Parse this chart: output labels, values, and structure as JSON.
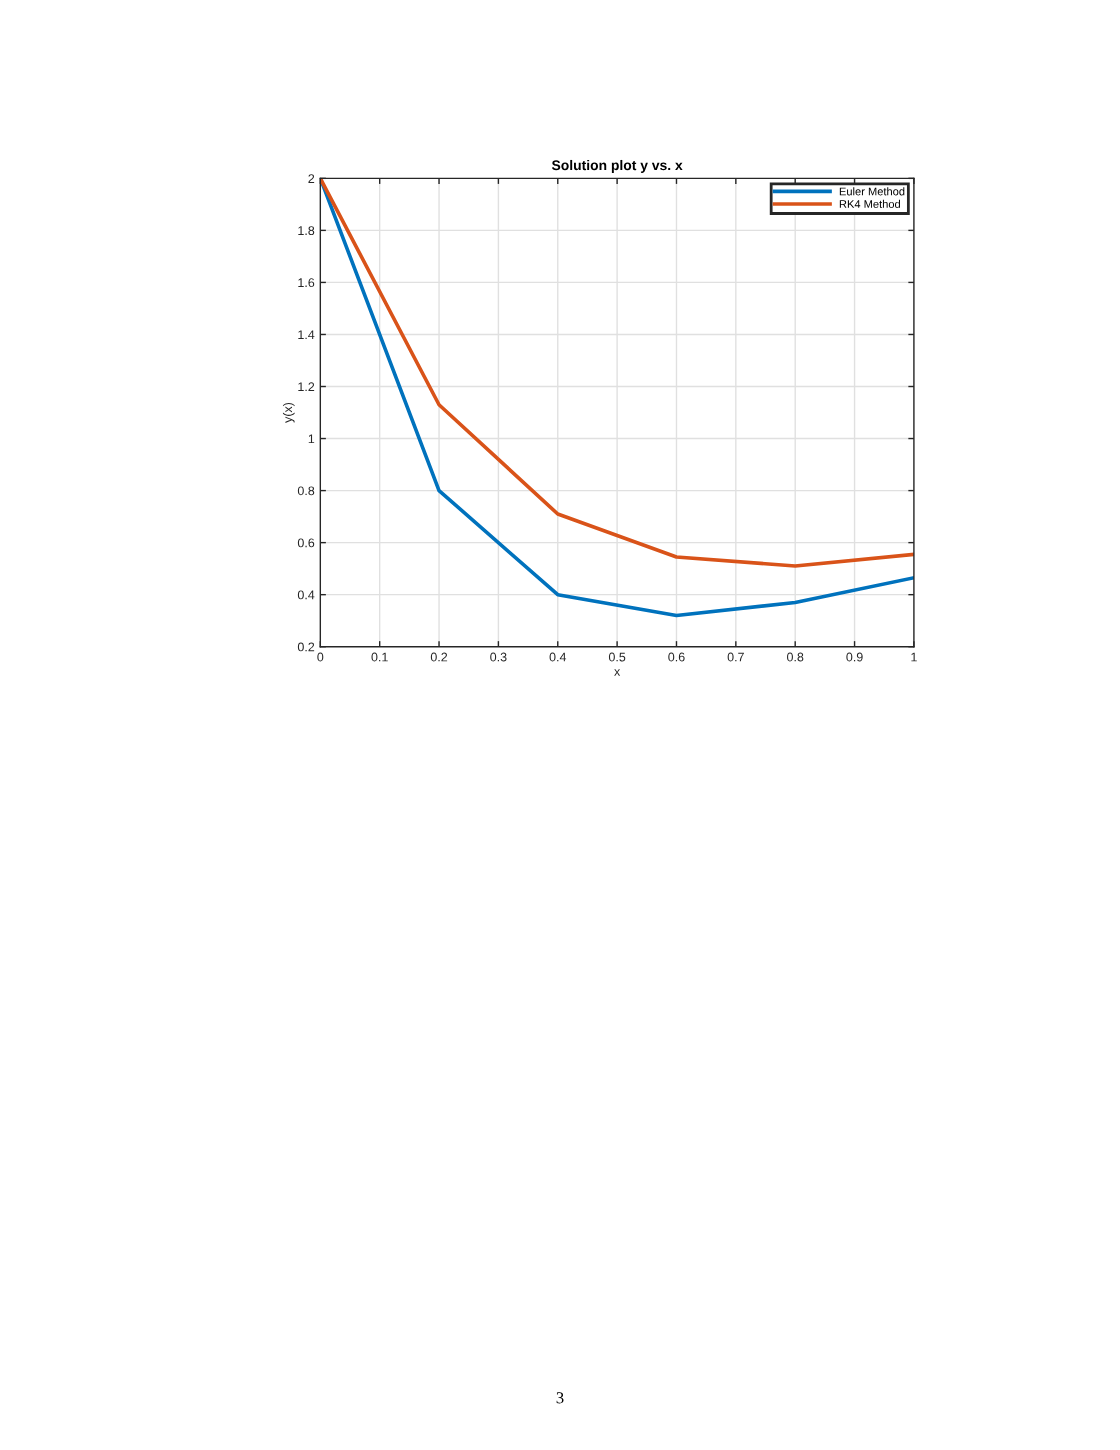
{
  "chart_data": {
    "type": "line",
    "title": "Solution plot y vs. x",
    "xlabel": "x",
    "ylabel": "y(x)",
    "x": [
      0,
      0.2,
      0.4,
      0.6,
      0.8,
      1
    ],
    "series": [
      {
        "name": "Euler Method",
        "color": "#0072bd",
        "values": [
          2,
          0.8,
          0.4,
          0.32,
          0.37,
          0.465
        ]
      },
      {
        "name": "RK4 Method",
        "color": "#d95319",
        "values": [
          2,
          1.13,
          0.71,
          0.545,
          0.51,
          0.555
        ]
      }
    ],
    "xlim": [
      0,
      1
    ],
    "xticks": [
      0,
      0.1,
      0.2,
      0.3,
      0.4,
      0.5,
      0.6,
      0.7,
      0.8,
      0.9,
      1
    ],
    "ylim": [
      0.2,
      2
    ],
    "yticks": [
      0.2,
      0.4,
      0.6,
      0.8,
      1,
      1.2,
      1.4,
      1.6,
      1.8,
      2
    ],
    "grid": true,
    "legend": "top right",
    "annotations": [
      "3"
    ]
  }
}
